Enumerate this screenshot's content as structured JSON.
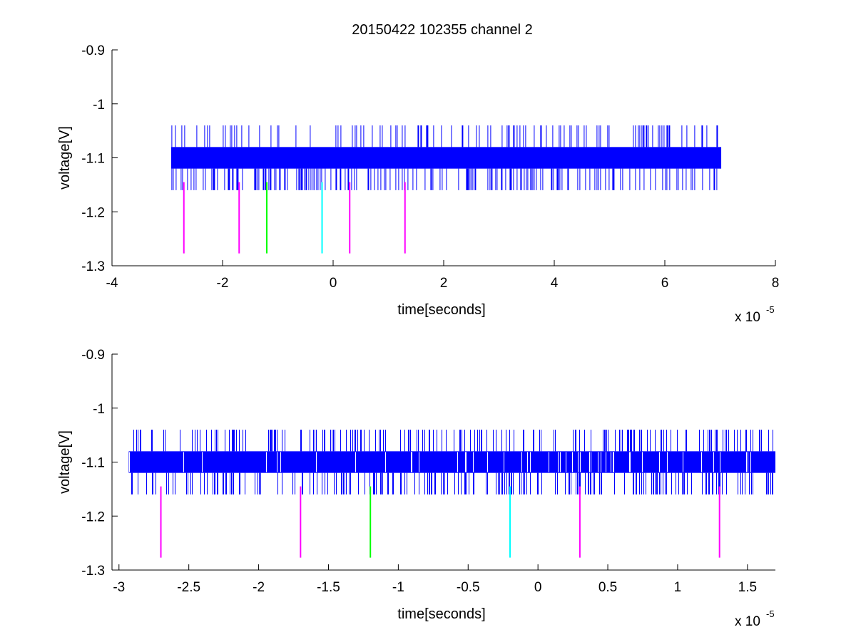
{
  "figure_title": "20150422 102355 channel 2",
  "chart_data": [
    {
      "type": "line",
      "panel": "top",
      "xlabel": "time[seconds]",
      "ylabel": "voltage[V]",
      "x_multiplier": "x 10",
      "x_exponent": "-5",
      "xlim": [
        -4,
        8
      ],
      "ylim": [
        -1.3,
        -0.9
      ],
      "xticks": [
        -4,
        -2,
        0,
        2,
        4,
        6,
        8
      ],
      "xtick_labels": [
        "-4",
        "-2",
        "0",
        "2",
        "4",
        "6",
        "8"
      ],
      "yticks": [
        -0.9,
        -1.0,
        -1.1,
        -1.2,
        -1.3
      ],
      "ytick_labels": [
        "-0.9",
        "-1",
        "-1.1",
        "-1.2",
        "-1.3"
      ],
      "grid": false,
      "signal": {
        "color": "#0000ff",
        "x_range": [
          -2.93,
          7.02
        ],
        "band": [
          -1.12,
          -1.08
        ],
        "spike_range": [
          -1.16,
          -1.04
        ]
      },
      "markers": {
        "x": [
          -2.7,
          -1.7,
          -1.2,
          -0.2,
          0.3,
          1.3
        ],
        "y_range": [
          -1.145,
          -1.277
        ],
        "colors": [
          "#ff00ff",
          "#ff00ff",
          "#00ff00",
          "#00ffff",
          "#ff00ff",
          "#ff00ff"
        ]
      }
    },
    {
      "type": "line",
      "panel": "bottom",
      "xlabel": "time[seconds]",
      "ylabel": "voltage[V]",
      "x_multiplier": "x 10",
      "x_exponent": "-5",
      "xlim": [
        -3.05,
        1.7
      ],
      "ylim": [
        -1.3,
        -0.9
      ],
      "xticks": [
        -3,
        -2.5,
        -2,
        -1.5,
        -1,
        -0.5,
        0,
        0.5,
        1,
        1.5
      ],
      "xtick_labels": [
        "-3",
        "-2.5",
        "-2",
        "-1.5",
        "-1",
        "-0.5",
        "0",
        "0.5",
        "1",
        "1.5"
      ],
      "yticks": [
        -0.9,
        -1.0,
        -1.1,
        -1.2,
        -1.3
      ],
      "ytick_labels": [
        "-0.9",
        "-1",
        "-1.1",
        "-1.2",
        "-1.3"
      ],
      "grid": false,
      "signal": {
        "color": "#0000ff",
        "x_range": [
          -2.93,
          1.7
        ],
        "band": [
          -1.12,
          -1.08
        ],
        "spike_range": [
          -1.16,
          -1.04
        ]
      },
      "markers": {
        "x": [
          -2.7,
          -1.7,
          -1.2,
          -0.2,
          0.3,
          1.3
        ],
        "y_range": [
          -1.145,
          -1.277
        ],
        "colors": [
          "#ff00ff",
          "#ff00ff",
          "#00ff00",
          "#00ffff",
          "#ff00ff",
          "#ff00ff"
        ]
      }
    }
  ]
}
